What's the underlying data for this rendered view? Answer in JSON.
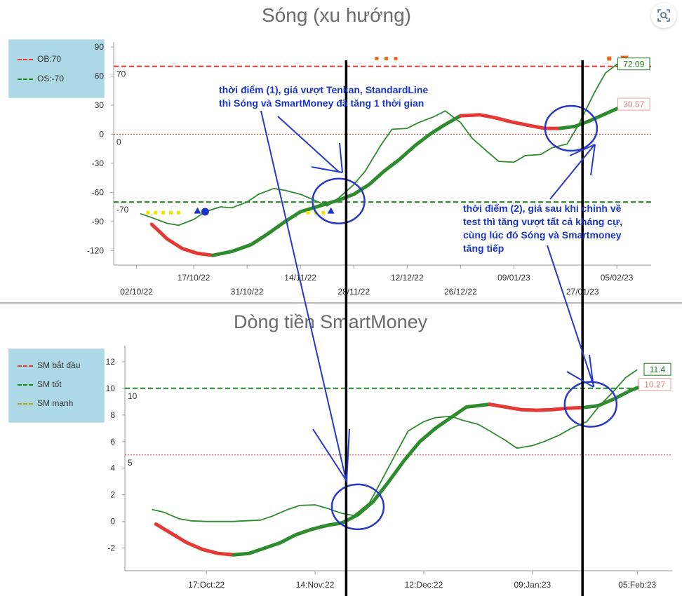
{
  "toolbar": {
    "icon": "scan-search-icon"
  },
  "chart_data": [
    {
      "type": "line",
      "title": "Sóng (xu hướng)",
      "legend": {
        "placement": "top-left-outside",
        "items": [
          {
            "label": "OB:70",
            "color": "#e53935"
          },
          {
            "label": "OS:-70",
            "color": "#1a8a1a"
          }
        ]
      },
      "ylim": [
        -135,
        95
      ],
      "yticks": [
        90,
        60,
        30,
        0,
        -30,
        -60,
        -90,
        -120
      ],
      "x_range": [
        "2022-09-26",
        "2023-02-14"
      ],
      "x_ticks_row1": [
        {
          "date": "2022-10-17",
          "label": "17/10/22"
        },
        {
          "date": "2022-11-14",
          "label": "14/11/22"
        },
        {
          "date": "2022-12-12",
          "label": "12/12/22"
        },
        {
          "date": "2023-01-09",
          "label": "09/01/23"
        },
        {
          "date": "2023-02-05",
          "label": "05/02/23"
        }
      ],
      "x_ticks_row2": [
        {
          "date": "2022-10-02",
          "label": "02/10/22"
        },
        {
          "date": "2022-10-31",
          "label": "31/10/22"
        },
        {
          "date": "2022-11-28",
          "label": "28/11/22"
        },
        {
          "date": "2022-12-26",
          "label": "26/12/22"
        },
        {
          "date": "2023-01-27",
          "label": "27/01/23"
        }
      ],
      "reference_lines": [
        {
          "value": 70,
          "label": "70",
          "color": "#e53935",
          "style": "dashed"
        },
        {
          "value": 0,
          "label": "0",
          "color": "#c62828",
          "style": "dotted",
          "label_color": "#1a237e"
        },
        {
          "value": -70,
          "label": "-70",
          "color": "#1a8a1a",
          "style": "dashed"
        }
      ],
      "series": [
        {
          "role": "thin",
          "color": "#2e8b2e",
          "points": [
            [
              "2022-10-03",
              -82
            ],
            [
              "2022-10-06",
              -86
            ],
            [
              "2022-10-10",
              -92
            ],
            [
              "2022-10-13",
              -94
            ],
            [
              "2022-10-17",
              -88
            ],
            [
              "2022-10-20",
              -80
            ],
            [
              "2022-10-24",
              -75
            ],
            [
              "2022-10-27",
              -76
            ],
            [
              "2022-10-31",
              -70
            ],
            [
              "2022-11-03",
              -62
            ],
            [
              "2022-11-07",
              -56
            ],
            [
              "2022-11-10",
              -58
            ],
            [
              "2022-11-14",
              -62
            ],
            [
              "2022-11-17",
              -67
            ],
            [
              "2022-11-21",
              -74
            ],
            [
              "2022-11-24",
              -66
            ],
            [
              "2022-11-28",
              -52
            ],
            [
              "2022-12-01",
              -38
            ],
            [
              "2022-12-05",
              -12
            ],
            [
              "2022-12-08",
              5
            ],
            [
              "2022-12-12",
              6
            ],
            [
              "2022-12-15",
              12
            ],
            [
              "2022-12-19",
              18
            ],
            [
              "2022-12-22",
              24
            ],
            [
              "2022-12-26",
              12
            ],
            [
              "2022-12-29",
              -4
            ],
            [
              "2023-01-02",
              -18
            ],
            [
              "2023-01-05",
              -28
            ],
            [
              "2023-01-09",
              -29
            ],
            [
              "2023-01-12",
              -22
            ],
            [
              "2023-01-16",
              -21
            ],
            [
              "2023-01-19",
              -14
            ],
            [
              "2023-01-23",
              -10
            ],
            [
              "2023-01-26",
              10
            ],
            [
              "2023-01-30",
              42
            ],
            [
              "2023-02-02",
              63
            ],
            [
              "2023-02-05",
              72
            ],
            [
              "2023-02-08",
              72.09
            ]
          ]
        },
        {
          "role": "thick",
          "color": "#2e8b2e",
          "segments": [
            {
              "color": "#e53935",
              "points": [
                [
                  "2022-10-06",
                  -93
                ],
                [
                  "2022-10-10",
                  -108
                ],
                [
                  "2022-10-14",
                  -118
                ],
                [
                  "2022-10-18",
                  -123
                ],
                [
                  "2022-10-22",
                  -125
                ]
              ]
            },
            {
              "color": "#2e8b2e",
              "points": [
                [
                  "2022-10-22",
                  -125
                ],
                [
                  "2022-10-27",
                  -121
                ],
                [
                  "2022-11-01",
                  -114
                ],
                [
                  "2022-11-05",
                  -104
                ],
                [
                  "2022-11-10",
                  -90
                ],
                [
                  "2022-11-14",
                  -80
                ],
                [
                  "2022-11-19",
                  -74
                ],
                [
                  "2022-11-24",
                  -68
                ],
                [
                  "2022-11-28",
                  -62
                ],
                [
                  "2022-12-02",
                  -52
                ],
                [
                  "2022-12-06",
                  -38
                ],
                [
                  "2022-12-10",
                  -26
                ],
                [
                  "2022-12-14",
                  -12
                ],
                [
                  "2022-12-18",
                  0
                ],
                [
                  "2022-12-22",
                  10
                ],
                [
                  "2022-12-26",
                  19
                ]
              ]
            },
            {
              "color": "#e53935",
              "points": [
                [
                  "2022-12-26",
                  19
                ],
                [
                  "2022-12-31",
                  20
                ],
                [
                  "2023-01-04",
                  17
                ],
                [
                  "2023-01-08",
                  13
                ],
                [
                  "2023-01-13",
                  9
                ],
                [
                  "2023-01-17",
                  6
                ],
                [
                  "2023-01-21",
                  6
                ]
              ]
            },
            {
              "color": "#2e8b2e",
              "points": [
                [
                  "2023-01-21",
                  6
                ],
                [
                  "2023-01-25",
                  8
                ],
                [
                  "2023-01-29",
                  14
                ],
                [
                  "2023-02-02",
                  21
                ],
                [
                  "2023-02-06",
                  28
                ],
                [
                  "2023-02-08",
                  30.57
                ]
              ]
            }
          ]
        }
      ],
      "end_labels": [
        {
          "text": "72.09",
          "value": 72.09,
          "color": "#1a7a1a",
          "border": "#1a7a1a"
        },
        {
          "text": "30.57",
          "value": 30.57,
          "color": "#e08080",
          "border": "#e8a0a0"
        }
      ],
      "markers": [
        {
          "shape": "yellow-dashes",
          "date_from": "2022-10-05",
          "date_to": "2022-10-13",
          "value": -81,
          "color": "#f2e200"
        },
        {
          "shape": "blue-triangle",
          "date": "2022-10-18",
          "value": -79,
          "color": "#1a35c8"
        },
        {
          "shape": "blue-circle",
          "date": "2022-10-20",
          "value": -80,
          "color": "#1a35c8"
        },
        {
          "shape": "yellow-dashes",
          "date_from": "2022-11-16",
          "date_to": "2022-11-20",
          "value": -81,
          "color": "#f2e200"
        },
        {
          "shape": "blue-triangle",
          "date": "2022-11-22",
          "value": -79,
          "color": "#1a35c8"
        },
        {
          "shape": "orange-dashes",
          "date_from": "2022-12-04",
          "date_to": "2022-12-09",
          "value": 78,
          "color": "#f26b1d"
        },
        {
          "shape": "orange-dash",
          "date": "2023-02-03",
          "value": 78,
          "color": "#f26b1d"
        },
        {
          "shape": "orange-triangle-down",
          "date": "2023-02-07",
          "value": 78,
          "color": "#f26b1d"
        }
      ],
      "annotations": [
        {
          "lines": [
            "thời điểm (1), giá vượt Tenkan, StandardLine",
            "thì Sóng và SmartMoney đã tăng 1 thời gian"
          ]
        },
        {
          "lines": [
            "thời điểm (2), giá sau khi chỉnh về",
            "test thì tăng vượt tất cả kháng cự,",
            "cùng lúc đó Sóng và Smartmoney",
            "tăng tiếp"
          ]
        }
      ],
      "circles": [
        {
          "date": "2022-11-24",
          "value": -69
        },
        {
          "date": "2023-01-24",
          "value": 6
        }
      ],
      "vertical_markers": [
        "2022-11-26",
        "2023-01-27"
      ]
    },
    {
      "type": "line",
      "title": "Dòng tiền SmartMoney",
      "legend": {
        "placement": "top-left-outside",
        "items": [
          {
            "label": "SM bắt đầu",
            "color": "#e53935"
          },
          {
            "label": "SM tốt",
            "color": "#1a8a1a"
          },
          {
            "label": "SM mạnh",
            "color": "#c8a000"
          }
        ]
      },
      "ylim": [
        -3.7,
        13.2
      ],
      "yticks": [
        12,
        10,
        8,
        6,
        4,
        2,
        0,
        -2
      ],
      "x_range": [
        "2022-09-26",
        "2023-02-14"
      ],
      "x_ticks_row1": [
        {
          "date": "2022-10-17",
          "label": "17:Oct:22"
        },
        {
          "date": "2022-11-14",
          "label": "14:Nov:22"
        },
        {
          "date": "2022-12-12",
          "label": "12:Dec:22"
        },
        {
          "date": "2023-01-09",
          "label": "09:Jan:23"
        },
        {
          "date": "2023-02-05",
          "label": "05:Feb:23"
        }
      ],
      "reference_lines": [
        {
          "value": 10,
          "label": "10",
          "color": "#1a8a1a",
          "style": "dashed"
        },
        {
          "value": 5,
          "label": "5",
          "color": "#e53935",
          "style": "dotted",
          "label_color": "#1a237e"
        }
      ],
      "series": [
        {
          "role": "thin",
          "color": "#2e8b2e",
          "points": [
            [
              "2022-10-03",
              0.9
            ],
            [
              "2022-10-06",
              0.7
            ],
            [
              "2022-10-10",
              0.2
            ],
            [
              "2022-10-13",
              0.05
            ],
            [
              "2022-10-17",
              0
            ],
            [
              "2022-10-20",
              0
            ],
            [
              "2022-10-24",
              0
            ],
            [
              "2022-10-27",
              0.05
            ],
            [
              "2022-10-31",
              0.1
            ],
            [
              "2022-11-03",
              0.4
            ],
            [
              "2022-11-07",
              0.9
            ],
            [
              "2022-11-10",
              1.2
            ],
            [
              "2022-11-14",
              1.25
            ],
            [
              "2022-11-17",
              1
            ],
            [
              "2022-11-21",
              0.6
            ],
            [
              "2022-11-24",
              0.45
            ],
            [
              "2022-11-28",
              1.4
            ],
            [
              "2022-12-01",
              3
            ],
            [
              "2022-12-05",
              5.2
            ],
            [
              "2022-12-08",
              6.8
            ],
            [
              "2022-12-12",
              7.5
            ],
            [
              "2022-12-15",
              7.8
            ],
            [
              "2022-12-19",
              7.9
            ],
            [
              "2022-12-22",
              7.6
            ],
            [
              "2022-12-26",
              7.3
            ],
            [
              "2022-12-29",
              6.8
            ],
            [
              "2023-01-02",
              6.1
            ],
            [
              "2023-01-05",
              5.5
            ],
            [
              "2023-01-09",
              5.7
            ],
            [
              "2023-01-12",
              6
            ],
            [
              "2023-01-16",
              6.5
            ],
            [
              "2023-01-19",
              7
            ],
            [
              "2023-01-23",
              7.5
            ],
            [
              "2023-01-26",
              8.6
            ],
            [
              "2023-01-30",
              9.8
            ],
            [
              "2023-02-02",
              10.8
            ],
            [
              "2023-02-05",
              11.4
            ]
          ]
        },
        {
          "role": "thick",
          "color": "#2e8b2e",
          "segments": [
            {
              "color": "#e53935",
              "points": [
                [
                  "2022-10-04",
                  -0.2
                ],
                [
                  "2022-10-08",
                  -0.9
                ],
                [
                  "2022-10-12",
                  -1.6
                ],
                [
                  "2022-10-16",
                  -2.1
                ],
                [
                  "2022-10-20",
                  -2.4
                ],
                [
                  "2022-10-24",
                  -2.5
                ]
              ]
            },
            {
              "color": "#2e8b2e",
              "points": [
                [
                  "2022-10-24",
                  -2.5
                ],
                [
                  "2022-10-28",
                  -2.4
                ],
                [
                  "2022-11-01",
                  -2
                ],
                [
                  "2022-11-05",
                  -1.6
                ],
                [
                  "2022-11-09",
                  -1
                ],
                [
                  "2022-11-13",
                  -0.6
                ],
                [
                  "2022-11-17",
                  -0.3
                ],
                [
                  "2022-11-21",
                  -0.1
                ],
                [
                  "2022-11-25",
                  0.5
                ],
                [
                  "2022-11-29",
                  1.5
                ],
                [
                  "2022-12-03",
                  3
                ],
                [
                  "2022-12-07",
                  4.6
                ],
                [
                  "2022-12-11",
                  6
                ],
                [
                  "2022-12-15",
                  7
                ],
                [
                  "2022-12-19",
                  7.8
                ],
                [
                  "2022-12-23",
                  8.6
                ],
                [
                  "2022-12-29",
                  8.8
                ]
              ]
            },
            {
              "color": "#e53935",
              "points": [
                [
                  "2022-12-29",
                  8.8
                ],
                [
                  "2023-01-02",
                  8.6
                ],
                [
                  "2023-01-06",
                  8.4
                ],
                [
                  "2023-01-10",
                  8.35
                ],
                [
                  "2023-01-14",
                  8.4
                ],
                [
                  "2023-01-18",
                  8.5
                ],
                [
                  "2023-01-22",
                  8.55
                ]
              ]
            },
            {
              "color": "#2e8b2e",
              "points": [
                [
                  "2023-01-22",
                  8.55
                ],
                [
                  "2023-01-26",
                  8.7
                ],
                [
                  "2023-01-30",
                  9.2
                ],
                [
                  "2023-02-03",
                  9.8
                ],
                [
                  "2023-02-07",
                  10.27
                ]
              ]
            }
          ]
        }
      ],
      "end_labels": [
        {
          "text": "11.4",
          "value": 11.4,
          "color": "#1a7a1a",
          "border": "#1a7a1a"
        },
        {
          "text": "10.27",
          "value": 10.27,
          "color": "#e08080",
          "border": "#e8a0a0"
        }
      ],
      "circles": [
        {
          "date": "2022-11-25",
          "value": 1.1
        },
        {
          "date": "2023-01-24",
          "value": 8.8
        }
      ],
      "vertical_markers": [
        "2022-11-26",
        "2023-01-27"
      ]
    }
  ]
}
